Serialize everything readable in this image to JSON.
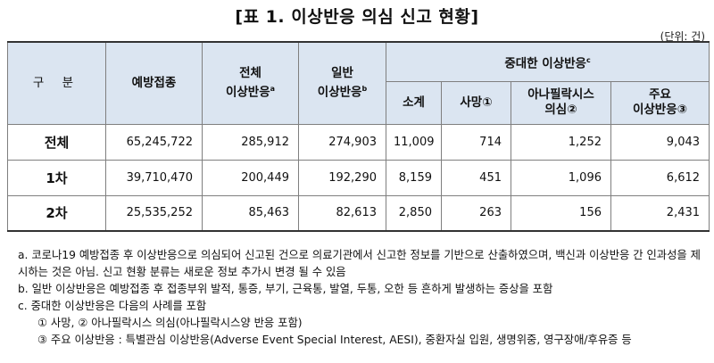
{
  "title": "[표 1. 이상반응 의심 신고 현황]",
  "unit": "(단위: 건)",
  "header": {
    "gubun": "구 분",
    "vaccinations": "예방접종",
    "total_ae": "전체",
    "total_ae_2": "이상반응",
    "total_ae_sup": "a",
    "general_ae": "일반",
    "general_ae_2": "이상반응",
    "general_ae_sup": "b",
    "serious_ae": "중대한 이상반응",
    "serious_ae_sup": "c",
    "subtotal": "소계",
    "death": "사망",
    "death_mark": "①",
    "anaphylaxis": "아나필락시스",
    "anaphylaxis_2": "의심",
    "anaphylaxis_mark": "②",
    "major": "주요",
    "major_2": "이상반응",
    "major_mark": "③"
  },
  "rows": [
    {
      "label": "전체",
      "vaccinations": "65,245,722",
      "total": "285,912",
      "general": "274,903",
      "subtotal": "11,009",
      "death": "714",
      "anaphylaxis": "1,252",
      "major": "9,043"
    },
    {
      "label": "1차",
      "vaccinations": "39,710,470",
      "total": "200,449",
      "general": "192,290",
      "subtotal": "8,159",
      "death": "451",
      "anaphylaxis": "1,096",
      "major": "6,612"
    },
    {
      "label": "2차",
      "vaccinations": "25,535,252",
      "total": "85,463",
      "general": "82,613",
      "subtotal": "2,850",
      "death": "263",
      "anaphylaxis": "156",
      "major": "2,431"
    }
  ],
  "notes": {
    "a": "a. 코로나19 예방접종 후 이상반응으로 의심되어 신고된 건으로 의료기관에서 신고한 정보를 기반으로 산출하였으며, 백신과 이상반응 간 인과성을 제시하는 것은 아님. 신고 현황 분류는 새로운 정보 추가시 변경 될 수 있음",
    "b": "b. 일반 이상반응은 예방접종 후 접종부위 발적, 통증, 부기, 근육통, 발열, 두통, 오한 등 흔하게 발생하는 증상을 포함",
    "c": "c. 중대한 이상반응은 다음의 사례를 포함",
    "c1": "① 사망, ② 아나필락시스 의심(아나필락시스양 반응 포함)",
    "c2": "③ 주요 이상반응 : 특별관심 이상반응(Adverse Event Special Interest, AESI), 중환자실 입원, 생명위중, 영구장애/후유증 등"
  }
}
